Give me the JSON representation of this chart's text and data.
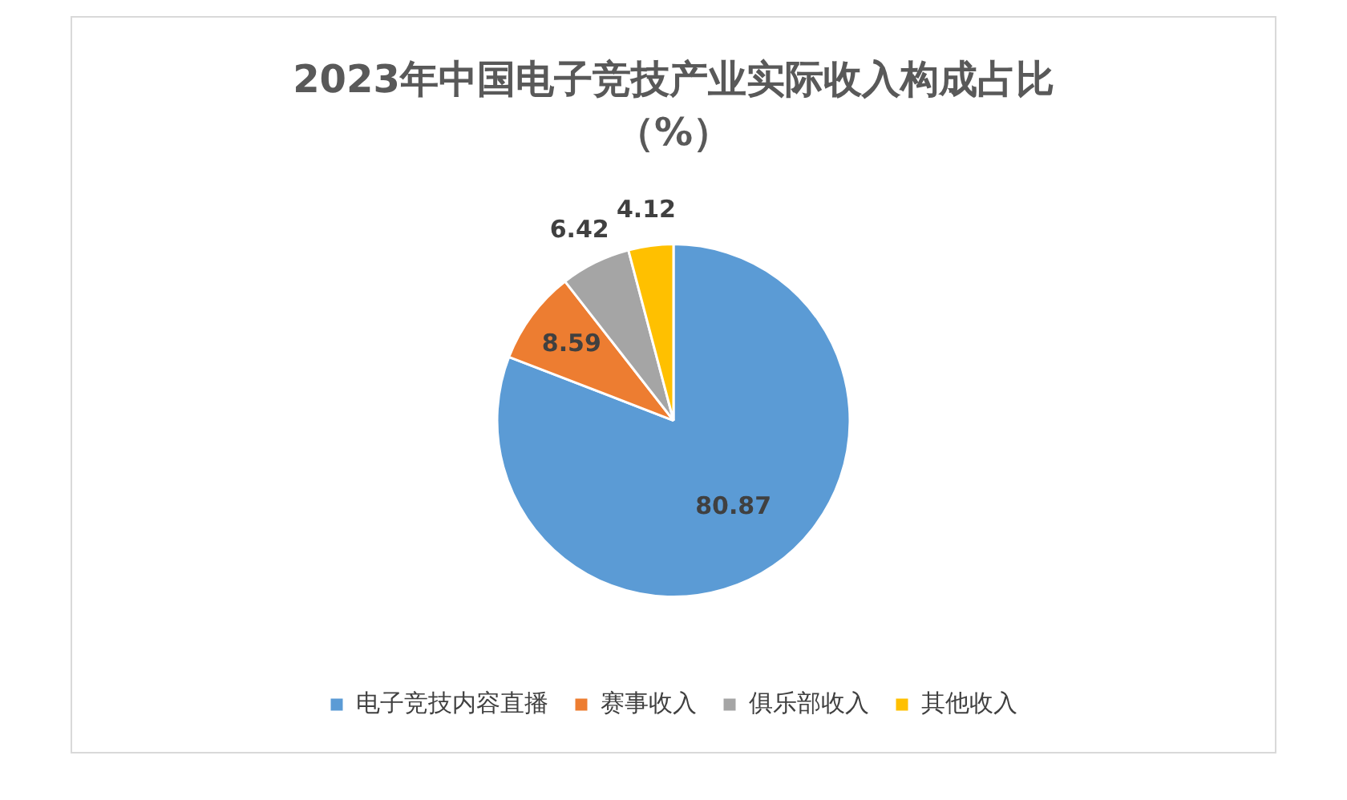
{
  "chart_data": {
    "type": "pie",
    "title": "2023年中国电子竞技产业实际收入构成占比",
    "subtitle": "（%）",
    "categories": [
      "电子竞技内容直播",
      "赛事收入",
      "俱乐部收入",
      "其他收入"
    ],
    "values": [
      80.87,
      8.59,
      6.42,
      4.12
    ],
    "colors": [
      "#5b9bd5",
      "#ed7d31",
      "#a5a5a5",
      "#ffc000"
    ],
    "data_labels": true,
    "legend": "bottom"
  }
}
